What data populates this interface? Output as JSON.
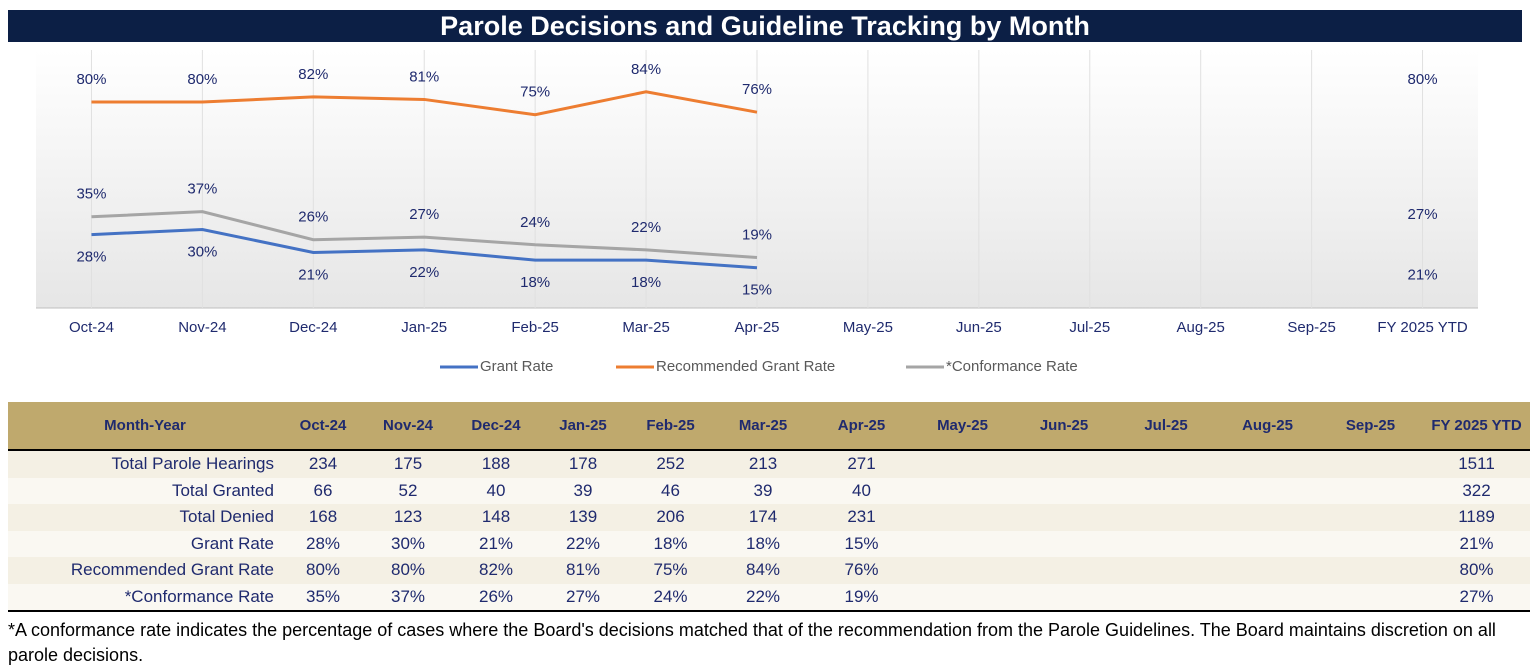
{
  "chart_data": {
    "type": "line",
    "title": "Parole Decisions and Guideline Tracking by Month",
    "categories": [
      "Oct-24",
      "Nov-24",
      "Dec-24",
      "Jan-25",
      "Feb-25",
      "Mar-25",
      "Apr-25",
      "May-25",
      "Jun-25",
      "Jul-25",
      "Aug-25",
      "Sep-25",
      "FY 2025 YTD"
    ],
    "ylim": [
      0,
      100
    ],
    "legend": "bottom",
    "series": [
      {
        "name": "Grant Rate",
        "color": "#4472c4",
        "label_side": "below",
        "values": [
          28,
          30,
          21,
          22,
          18,
          18,
          15,
          null,
          null,
          null,
          null,
          null,
          21
        ],
        "value_labels": [
          "28%",
          "30%",
          "21%",
          "22%",
          "18%",
          "18%",
          "15%",
          null,
          null,
          null,
          null,
          null,
          "21%"
        ]
      },
      {
        "name": "Recommended Grant Rate",
        "color": "#ed7d31",
        "label_side": "above",
        "values": [
          80,
          80,
          82,
          81,
          75,
          84,
          76,
          null,
          null,
          null,
          null,
          null,
          80
        ],
        "value_labels": [
          "80%",
          "80%",
          "82%",
          "81%",
          "75%",
          "84%",
          "76%",
          null,
          null,
          null,
          null,
          null,
          "80%"
        ]
      },
      {
        "name": "*Conformance Rate",
        "color": "#a5a5a5",
        "label_side": "above",
        "values": [
          35,
          37,
          26,
          27,
          24,
          22,
          19,
          null,
          null,
          null,
          null,
          null,
          27
        ],
        "value_labels": [
          "35%",
          "37%",
          "26%",
          "27%",
          "24%",
          "22%",
          "19%",
          null,
          null,
          null,
          null,
          null,
          "27%"
        ]
      }
    ]
  },
  "table": {
    "header": [
      "Month-Year",
      "Oct-24",
      "Nov-24",
      "Dec-24",
      "Jan-25",
      "Feb-25",
      "Mar-25",
      "Apr-25",
      "May-25",
      "Jun-25",
      "Jul-25",
      "Aug-25",
      "Sep-25",
      "FY 2025 YTD"
    ],
    "rows": [
      [
        "Total Parole Hearings",
        234,
        175,
        188,
        178,
        252,
        213,
        271,
        null,
        null,
        null,
        null,
        null,
        1511
      ],
      [
        "Total Granted",
        66,
        52,
        40,
        39,
        46,
        39,
        40,
        null,
        null,
        null,
        null,
        null,
        322
      ],
      [
        "Total Denied",
        168,
        123,
        148,
        139,
        206,
        174,
        231,
        null,
        null,
        null,
        null,
        null,
        1189
      ],
      [
        "Grant Rate",
        "28%",
        "30%",
        "21%",
        "22%",
        "18%",
        "18%",
        "15%",
        null,
        null,
        null,
        null,
        null,
        "21%"
      ],
      [
        "Recommended Grant Rate",
        "80%",
        "80%",
        "82%",
        "81%",
        "75%",
        "84%",
        "76%",
        null,
        null,
        null,
        null,
        null,
        "80%"
      ],
      [
        "*Conformance Rate",
        "35%",
        "37%",
        "26%",
        "27%",
        "24%",
        "22%",
        "19%",
        null,
        null,
        null,
        null,
        null,
        "27%"
      ]
    ]
  },
  "footnote": "*A conformance rate indicates the percentage of cases where the Board's decisions matched that of the recommendation from the Parole Guidelines. The Board maintains discretion on all parole decisions."
}
